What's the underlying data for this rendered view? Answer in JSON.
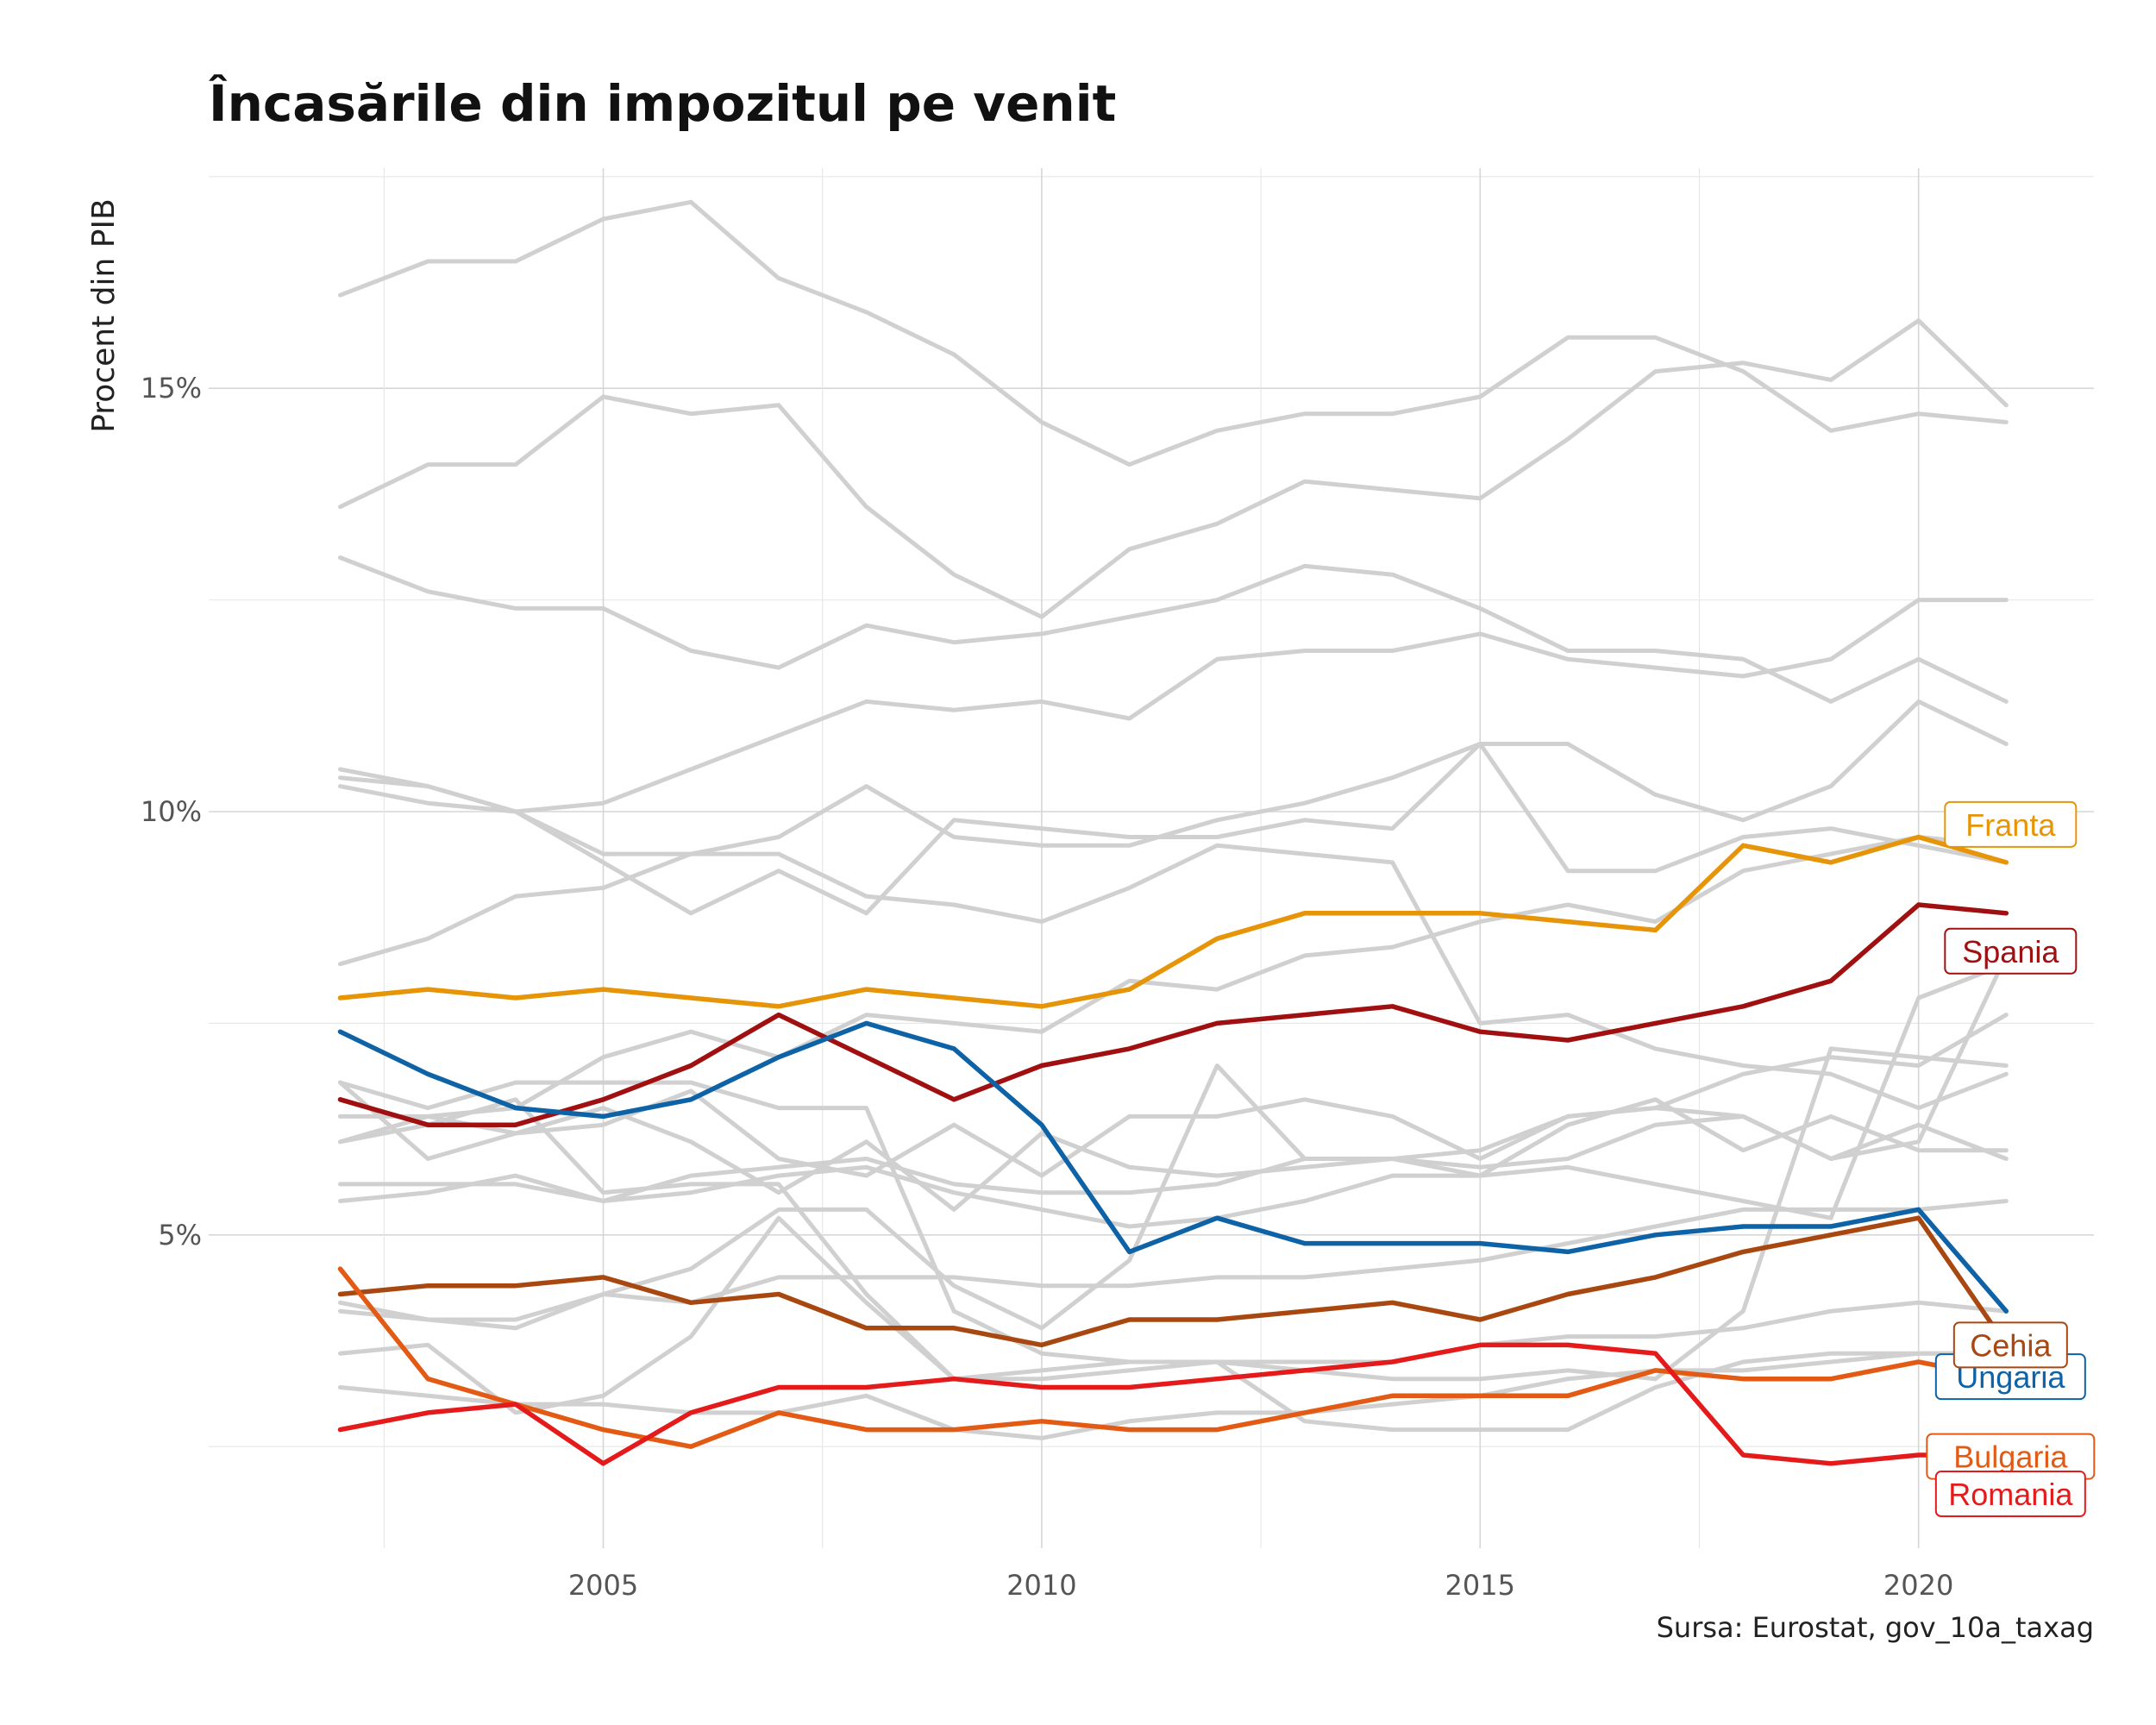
{
  "title": "Încasările din impozitul pe venit",
  "caption": "Sursa: Eurostat, gov_10a_taxag",
  "chart_data": {
    "type": "line",
    "title": "Încasările din impozitul pe venit",
    "ylabel": "Procent din PIB",
    "xlabel": "",
    "x": [
      2002,
      2003,
      2004,
      2005,
      2006,
      2007,
      2008,
      2009,
      2010,
      2011,
      2012,
      2013,
      2014,
      2015,
      2016,
      2017,
      2018,
      2019,
      2020,
      2021
    ],
    "xlim": [
      2000.5,
      2022.0
    ],
    "ylim": [
      1.3,
      17.6
    ],
    "x_ticks": [
      2005,
      2010,
      2015,
      2020
    ],
    "y_ticks": [
      5,
      10,
      15
    ],
    "y_tick_labels": [
      "5%",
      "10%",
      "15%"
    ],
    "grid": true,
    "highlighted_series": [
      {
        "name": "Franta",
        "color": "#E69408",
        "values": [
          7.8,
          7.9,
          7.8,
          7.9,
          7.8,
          7.7,
          7.9,
          7.8,
          7.7,
          7.9,
          8.5,
          8.8,
          8.8,
          8.8,
          8.7,
          8.6,
          9.6,
          9.4,
          9.7,
          9.4
        ]
      },
      {
        "name": "Spania",
        "color": "#A01010",
        "values": [
          6.6,
          6.3,
          6.3,
          6.6,
          7.0,
          7.6,
          7.1,
          6.6,
          7.0,
          7.2,
          7.5,
          7.6,
          7.7,
          7.4,
          7.3,
          7.5,
          7.7,
          8.0,
          8.9,
          8.8
        ]
      },
      {
        "name": "Ungaria",
        "color": "#0E62A6",
        "values": [
          7.4,
          6.9,
          6.5,
          6.4,
          6.6,
          7.1,
          7.5,
          7.2,
          6.3,
          4.8,
          5.2,
          4.9,
          4.9,
          4.9,
          4.8,
          5.0,
          5.1,
          5.1,
          5.3,
          4.1
        ]
      },
      {
        "name": "Cehia",
        "color": "#A84810",
        "values": [
          4.3,
          4.4,
          4.4,
          4.5,
          4.2,
          4.3,
          3.9,
          3.9,
          3.7,
          4.0,
          4.0,
          4.1,
          4.2,
          4.0,
          4.3,
          4.5,
          4.8,
          5.0,
          5.2,
          3.7
        ]
      },
      {
        "name": "Bulgaria",
        "color": "#E35A14",
        "values": [
          4.6,
          3.3,
          3.0,
          2.7,
          2.5,
          2.9,
          2.7,
          2.7,
          2.8,
          2.7,
          2.7,
          2.9,
          3.1,
          3.1,
          3.1,
          3.4,
          3.3,
          3.3,
          3.5,
          3.3
        ]
      },
      {
        "name": "Romania",
        "color": "#E51A1A",
        "values": [
          2.7,
          2.9,
          3.0,
          2.3,
          2.9,
          3.2,
          3.2,
          3.3,
          3.2,
          3.2,
          3.3,
          3.4,
          3.5,
          3.7,
          3.7,
          3.6,
          2.4,
          2.3,
          2.4,
          2.4
        ]
      }
    ],
    "background_series_color": "#D0D0D0",
    "background_series": [
      {
        "values": [
          16.1,
          16.5,
          16.5,
          17.0,
          17.2,
          16.3,
          15.9,
          15.4,
          14.6,
          14.1,
          14.5,
          14.7,
          14.7,
          14.9,
          15.6,
          15.6,
          15.2,
          14.5,
          14.7,
          14.6
        ]
      },
      {
        "values": [
          13.6,
          14.1,
          14.1,
          14.9,
          14.7,
          14.8,
          13.6,
          12.8,
          12.3,
          13.1,
          13.4,
          13.9,
          13.8,
          13.7,
          14.4,
          15.2,
          15.3,
          15.1,
          15.8,
          14.8
        ]
      },
      {
        "values": [
          13.0,
          12.6,
          12.4,
          12.4,
          11.9,
          11.7,
          12.2,
          12.0,
          12.1,
          12.3,
          12.5,
          12.9,
          12.8,
          12.4,
          11.9,
          11.9,
          11.8,
          11.3,
          11.8,
          11.3
        ]
      },
      {
        "values": [
          10.4,
          10.3,
          10.0,
          10.1,
          10.5,
          10.9,
          11.3,
          11.2,
          11.3,
          11.1,
          11.8,
          11.9,
          11.9,
          12.1,
          11.8,
          11.7,
          11.6,
          11.8,
          12.5,
          12.5
        ]
      },
      {
        "values": [
          10.5,
          10.3,
          10.0,
          9.5,
          9.5,
          9.5,
          9.0,
          8.9,
          8.7,
          9.1,
          9.6,
          9.5,
          9.4,
          7.5,
          7.6,
          7.2,
          7.0,
          6.9,
          6.5,
          6.9
        ]
      },
      {
        "values": [
          10.3,
          10.1,
          10.0,
          9.4,
          8.8,
          9.3,
          8.8,
          9.9,
          9.8,
          9.7,
          9.7,
          9.9,
          9.8,
          10.8,
          10.8,
          10.2,
          9.9,
          10.3,
          11.3,
          10.8
        ]
      },
      {
        "values": [
          8.2,
          8.5,
          9.0,
          9.1,
          9.5,
          9.7,
          10.3,
          9.7,
          9.6,
          9.6,
          9.9,
          10.1,
          10.4,
          10.8,
          9.3,
          9.3,
          9.7,
          9.8,
          9.6,
          9.4
        ]
      },
      {
        "values": [
          6.8,
          6.5,
          6.8,
          6.8,
          6.8,
          6.5,
          6.5,
          4.1,
          3.6,
          3.5,
          3.5,
          2.8,
          2.7,
          2.7,
          2.7,
          3.2,
          3.5,
          3.6,
          3.6,
          3.6
        ]
      },
      {
        "values": [
          6.1,
          6.4,
          6.5,
          7.1,
          7.4,
          7.1,
          7.6,
          7.5,
          7.4,
          8.0,
          7.9,
          8.3,
          8.4,
          8.7,
          8.9,
          8.7,
          9.3,
          9.5,
          9.7,
          9.6
        ]
      },
      {
        "values": [
          6.4,
          6.4,
          6.2,
          6.3,
          6.7,
          5.9,
          5.7,
          6.3,
          5.7,
          6.4,
          6.4,
          6.6,
          6.4,
          5.9,
          6.4,
          6.5,
          6.9,
          7.1,
          7.0,
          7.6
        ]
      },
      {
        "values": [
          6.8,
          5.9,
          6.2,
          6.5,
          6.1,
          5.5,
          6.1,
          5.3,
          6.2,
          5.8,
          5.7,
          5.8,
          5.9,
          5.8,
          5.9,
          6.3,
          6.4,
          5.9,
          6.1,
          8.3
        ]
      },
      {
        "values": [
          5.6,
          5.6,
          5.6,
          5.4,
          5.7,
          5.8,
          5.9,
          5.6,
          5.5,
          5.5,
          5.6,
          5.9,
          5.9,
          5.7,
          5.8,
          5.6,
          5.4,
          5.2,
          7.8,
          8.2
        ]
      },
      {
        "values": [
          5.4,
          5.5,
          5.7,
          5.4,
          5.5,
          5.7,
          5.8,
          5.5,
          5.3,
          5.1,
          5.2,
          5.4,
          5.7,
          5.7,
          6.3,
          6.6,
          6.0,
          6.4,
          6.0,
          6.0
        ]
      },
      {
        "values": [
          6.1,
          6.3,
          6.6,
          5.5,
          5.6,
          5.6,
          4.3,
          3.3,
          3.3,
          3.4,
          3.5,
          3.5,
          3.5,
          3.7,
          3.8,
          3.8,
          3.9,
          4.1,
          4.2,
          4.1
        ]
      },
      {
        "values": [
          4.2,
          4.0,
          3.9,
          4.3,
          4.6,
          5.3,
          5.3,
          4.4,
          3.9,
          4.7,
          7.0,
          5.9,
          5.9,
          6.0,
          6.4,
          6.5,
          6.4,
          5.9,
          6.3,
          5.9
        ]
      },
      {
        "values": [
          4.1,
          4.0,
          4.0,
          4.3,
          4.2,
          4.5,
          4.5,
          4.5,
          4.4,
          4.4,
          4.5,
          4.5,
          4.6,
          4.7,
          4.9,
          5.1,
          5.3,
          5.3,
          5.3,
          5.4
        ]
      },
      {
        "values": [
          3.6,
          3.7,
          2.9,
          3.1,
          3.8,
          5.2,
          4.2,
          3.3,
          3.4,
          3.5,
          3.5,
          3.4,
          3.3,
          3.3,
          3.4,
          3.3,
          4.1,
          7.2,
          7.1,
          7.0
        ]
      },
      {
        "values": [
          3.2,
          3.1,
          3.0,
          3.0,
          2.9,
          2.9,
          3.1,
          2.7,
          2.6,
          2.8,
          2.9,
          2.9,
          3.0,
          3.1,
          3.3,
          3.4,
          3.4,
          3.5,
          3.6,
          3.6
        ]
      }
    ]
  }
}
